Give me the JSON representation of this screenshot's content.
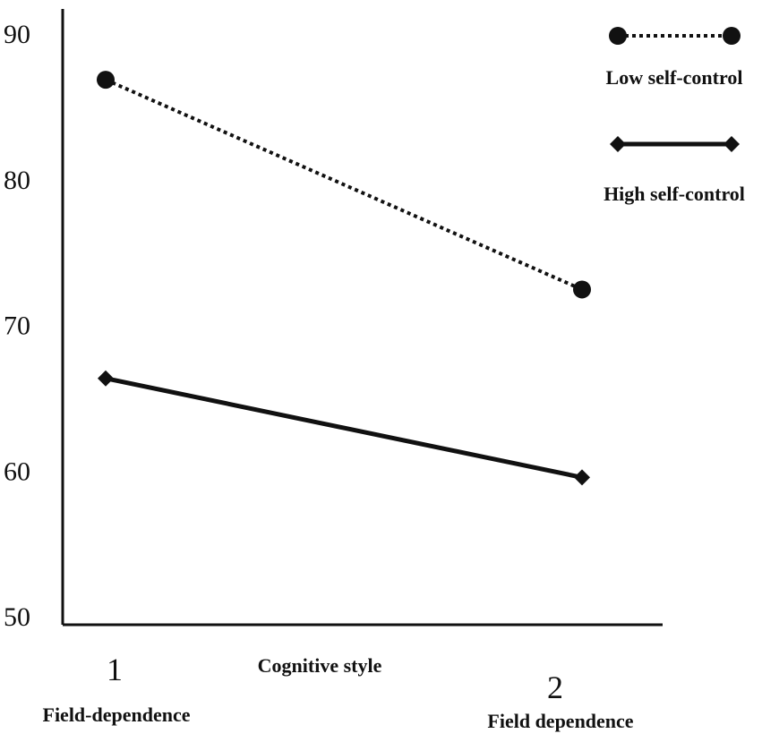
{
  "chart_data": {
    "type": "line",
    "xlabel": "Cognitive style",
    "x_ticks": [
      {
        "number": "1",
        "name": "Field-dependence"
      },
      {
        "number": "2",
        "name": "Field dependence"
      }
    ],
    "y_ticks": [
      "50",
      "60",
      "70",
      "80",
      "90"
    ],
    "ylim": [
      50,
      90
    ],
    "grid": false,
    "legend_position": "top-right",
    "series": [
      {
        "name": "Low self-control",
        "values": [
          86.8,
          72.4
        ],
        "marker": "circle",
        "line_style": "dotted",
        "color": "#111111"
      },
      {
        "name": "High self-control",
        "values": [
          66.3,
          59.5
        ],
        "marker": "diamond",
        "line_style": "solid",
        "color": "#111111"
      }
    ]
  }
}
